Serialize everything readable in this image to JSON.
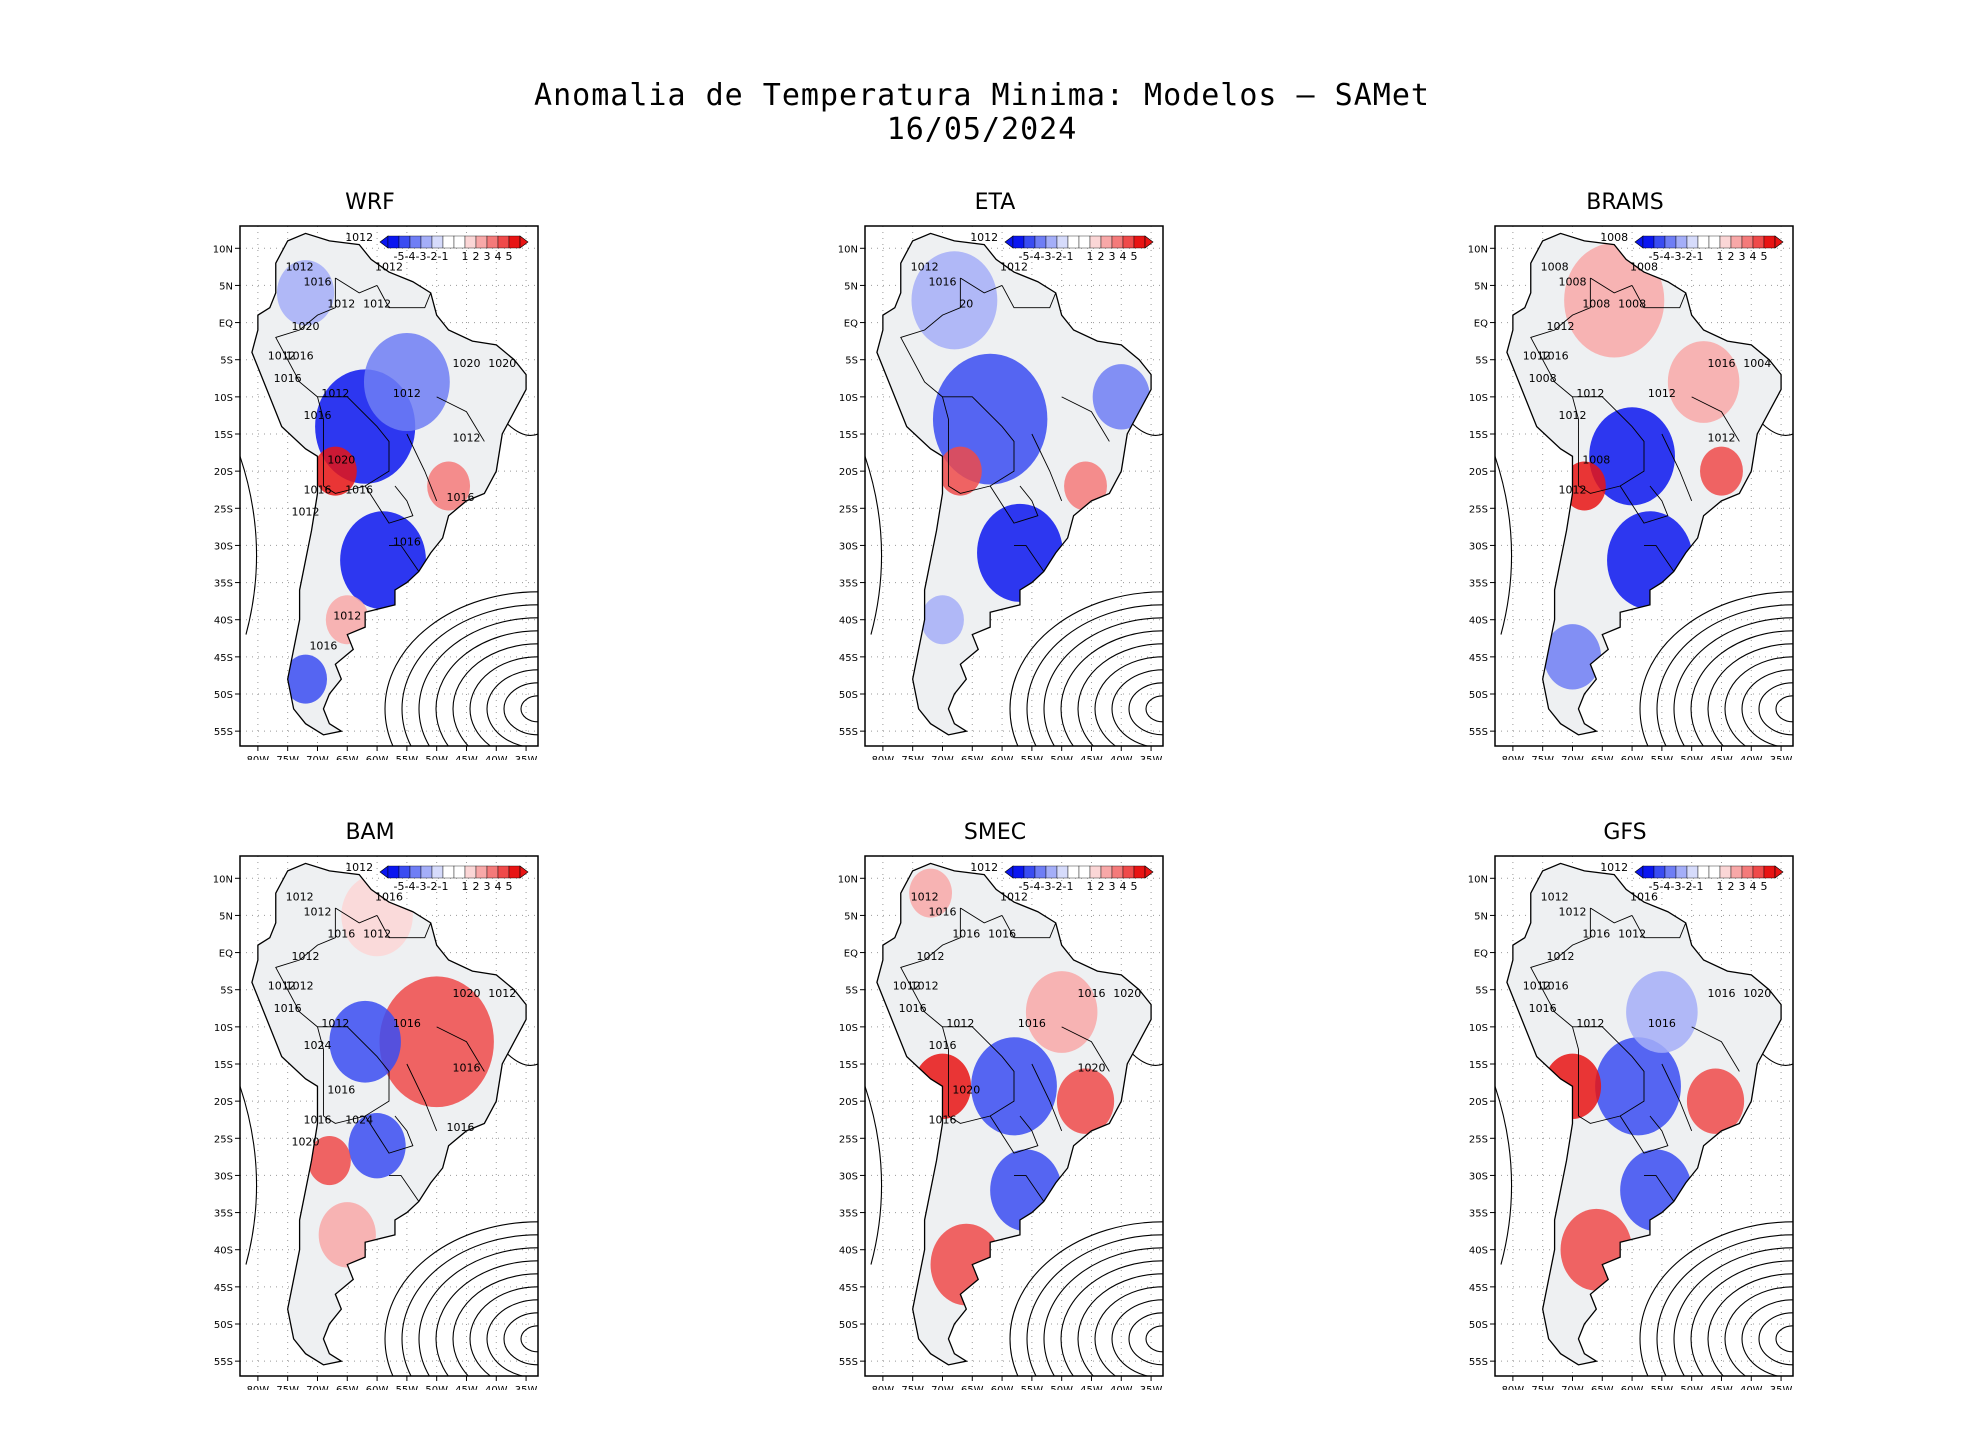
{
  "header": {
    "title_line1": "Anomalia de Temperatura Minima: Modelos — SAMet",
    "title_line2": "16/05/2024"
  },
  "colors": {
    "neg5": "#0a16f0",
    "neg4": "#3a4cf2",
    "neg3": "#6f7ef5",
    "neg2": "#a4aef8",
    "neg1": "#d6dbfb",
    "zero": "#ffffff",
    "pos1": "#fbd6d6",
    "pos2": "#f8a8a8",
    "pos3": "#f47a7a",
    "pos4": "#ef4a4a",
    "pos5": "#e81414",
    "contour": "#000000",
    "land": "#eef0f2"
  },
  "chart_data": [
    {
      "type": "heatmap",
      "title": "WRF",
      "colorbar_labels": [
        "-5",
        "-4",
        "-3",
        "-2",
        "-1",
        "1",
        "2",
        "3",
        "4",
        "5"
      ],
      "x_ticks": [
        "80W",
        "75W",
        "70W",
        "65W",
        "60W",
        "55W",
        "50W",
        "45W",
        "40W",
        "35W"
      ],
      "y_ticks": [
        "10N",
        "5N",
        "EQ",
        "5S",
        "10S",
        "15S",
        "20S",
        "25S",
        "30S",
        "35S",
        "40S",
        "45S",
        "50S",
        "55S"
      ],
      "xlim": [
        -83,
        -33
      ],
      "ylim": [
        -57,
        13
      ],
      "anomalies": [
        {
          "lon": -62,
          "lat": -14,
          "r": 7,
          "value": -5
        },
        {
          "lon": -59,
          "lat": -32,
          "r": 6,
          "value": -5
        },
        {
          "lon": -55,
          "lat": -8,
          "r": 6,
          "value": -3
        },
        {
          "lon": -67,
          "lat": -20,
          "r": 3,
          "value": 5
        },
        {
          "lon": -48,
          "lat": -22,
          "r": 3,
          "value": 3
        },
        {
          "lon": -65,
          "lat": -40,
          "r": 3,
          "value": 2
        },
        {
          "lon": -72,
          "lat": -48,
          "r": 3,
          "value": -4
        },
        {
          "lon": -72,
          "lat": 4,
          "r": 4,
          "value": -2
        }
      ],
      "isobar_labels": [
        "1012",
        "1012",
        "1016",
        "1012",
        "1012",
        "1012",
        "1020",
        "1016",
        "1012",
        "1016",
        "1012",
        "1020",
        "1020",
        "1012",
        "1016",
        "1012",
        "1020",
        "1016",
        "1016",
        "1012",
        "1016",
        "1016",
        "1012",
        "1016"
      ]
    },
    {
      "type": "heatmap",
      "title": "ETA",
      "colorbar_labels": [
        "-5",
        "-4",
        "-3",
        "-2",
        "-1",
        "1",
        "2",
        "3",
        "4",
        "5"
      ],
      "x_ticks": [
        "80W",
        "75W",
        "70W",
        "65W",
        "60W",
        "55W",
        "50W",
        "45W",
        "40W",
        "35W"
      ],
      "y_ticks": [
        "10N",
        "5N",
        "EQ",
        "5S",
        "10S",
        "15S",
        "20S",
        "25S",
        "30S",
        "35S",
        "40S",
        "45S",
        "50S",
        "55S"
      ],
      "xlim": [
        -83,
        -33
      ],
      "ylim": [
        -57,
        13
      ],
      "anomalies": [
        {
          "lon": -62,
          "lat": -13,
          "r": 8,
          "value": -4
        },
        {
          "lon": -57,
          "lat": -31,
          "r": 6,
          "value": -5
        },
        {
          "lon": -68,
          "lat": 3,
          "r": 6,
          "value": -2
        },
        {
          "lon": -40,
          "lat": -10,
          "r": 4,
          "value": -3
        },
        {
          "lon": -67,
          "lat": -20,
          "r": 3,
          "value": 4
        },
        {
          "lon": -46,
          "lat": -22,
          "r": 3,
          "value": 3
        },
        {
          "lon": -70,
          "lat": -40,
          "r": 3,
          "value": -2
        }
      ],
      "isobar_labels": [
        "1012",
        "1012",
        "1016",
        "1012",
        "20"
      ]
    },
    {
      "type": "heatmap",
      "title": "BRAMS",
      "colorbar_labels": [
        "-5",
        "-4",
        "-3",
        "-2",
        "-1",
        "1",
        "2",
        "3",
        "4",
        "5"
      ],
      "x_ticks": [
        "80W",
        "75W",
        "70W",
        "65W",
        "60W",
        "55W",
        "50W",
        "45W",
        "40W",
        "35W"
      ],
      "y_ticks": [
        "10N",
        "5N",
        "EQ",
        "5S",
        "10S",
        "15S",
        "20S",
        "25S",
        "30S",
        "35S",
        "40S",
        "45S",
        "50S",
        "55S"
      ],
      "xlim": [
        -83,
        -33
      ],
      "ylim": [
        -57,
        13
      ],
      "anomalies": [
        {
          "lon": -60,
          "lat": -18,
          "r": 6,
          "value": -5
        },
        {
          "lon": -57,
          "lat": -32,
          "r": 6,
          "value": -5
        },
        {
          "lon": -63,
          "lat": 3,
          "r": 7,
          "value": 2
        },
        {
          "lon": -48,
          "lat": -8,
          "r": 5,
          "value": 2
        },
        {
          "lon": -68,
          "lat": -22,
          "r": 3,
          "value": 5
        },
        {
          "lon": -45,
          "lat": -20,
          "r": 3,
          "value": 4
        },
        {
          "lon": -70,
          "lat": -45,
          "r": 4,
          "value": -3
        }
      ],
      "isobar_labels": [
        "1008",
        "1008",
        "1008",
        "1008",
        "1008",
        "1008",
        "1012",
        "1016",
        "1012",
        "1008",
        "1012",
        "1016",
        "1004",
        "1012",
        "1012",
        "1012",
        "1008",
        "1012"
      ]
    },
    {
      "type": "heatmap",
      "title": "BAM",
      "colorbar_labels": [
        "-5",
        "-4",
        "-3",
        "-2",
        "-1",
        "1",
        "2",
        "3",
        "4",
        "5"
      ],
      "x_ticks": [
        "80W",
        "75W",
        "70W",
        "65W",
        "60W",
        "55W",
        "50W",
        "45W",
        "40W",
        "35W"
      ],
      "y_ticks": [
        "10N",
        "5N",
        "EQ",
        "5S",
        "10S",
        "15S",
        "20S",
        "25S",
        "30S",
        "35S",
        "40S",
        "45S",
        "50S",
        "55S"
      ],
      "xlim": [
        -83,
        -33
      ],
      "ylim": [
        -57,
        13
      ],
      "anomalies": [
        {
          "lon": -50,
          "lat": -12,
          "r": 8,
          "value": 4
        },
        {
          "lon": -62,
          "lat": -12,
          "r": 5,
          "value": -4
        },
        {
          "lon": -60,
          "lat": -26,
          "r": 4,
          "value": -4
        },
        {
          "lon": -68,
          "lat": -28,
          "r": 3,
          "value": 4
        },
        {
          "lon": -65,
          "lat": -38,
          "r": 4,
          "value": 2
        },
        {
          "lon": -60,
          "lat": 5,
          "r": 5,
          "value": 1
        }
      ],
      "isobar_labels": [
        "1012",
        "1012",
        "1012",
        "1016",
        "1016",
        "1012",
        "1012",
        "1012",
        "1012",
        "1016",
        "1012",
        "1020",
        "1012",
        "1016",
        "1024",
        "1016",
        "1016",
        "1016",
        "1024",
        "1020",
        "1016"
      ]
    },
    {
      "type": "heatmap",
      "title": "SMEC",
      "colorbar_labels": [
        "-5",
        "-4",
        "-3",
        "-2",
        "-1",
        "1",
        "2",
        "3",
        "4",
        "5"
      ],
      "x_ticks": [
        "80W",
        "75W",
        "70W",
        "65W",
        "60W",
        "55W",
        "50W",
        "45W",
        "40W",
        "35W"
      ],
      "y_ticks": [
        "10N",
        "5N",
        "EQ",
        "5S",
        "10S",
        "15S",
        "20S",
        "25S",
        "30S",
        "35S",
        "40S",
        "45S",
        "50S",
        "55S"
      ],
      "xlim": [
        -83,
        -33
      ],
      "ylim": [
        -57,
        13
      ],
      "anomalies": [
        {
          "lon": -58,
          "lat": -18,
          "r": 6,
          "value": -4
        },
        {
          "lon": -56,
          "lat": -32,
          "r": 5,
          "value": -4
        },
        {
          "lon": -70,
          "lat": -18,
          "r": 4,
          "value": 5
        },
        {
          "lon": -46,
          "lat": -20,
          "r": 4,
          "value": 4
        },
        {
          "lon": -50,
          "lat": -8,
          "r": 5,
          "value": 2
        },
        {
          "lon": -66,
          "lat": -42,
          "r": 5,
          "value": 4
        },
        {
          "lon": -72,
          "lat": 8,
          "r": 3,
          "value": 2
        }
      ],
      "isobar_labels": [
        "1012",
        "1012",
        "1016",
        "1012",
        "1016",
        "1016",
        "1012",
        "1012",
        "1012",
        "1016",
        "1012",
        "1016",
        "1020",
        "1016",
        "1016",
        "1020",
        "1020",
        "1016"
      ]
    },
    {
      "type": "heatmap",
      "title": "GFS",
      "colorbar_labels": [
        "-5",
        "-4",
        "-3",
        "-2",
        "-1",
        "1",
        "2",
        "3",
        "4",
        "5"
      ],
      "x_ticks": [
        "80W",
        "75W",
        "70W",
        "65W",
        "60W",
        "55W",
        "50W",
        "45W",
        "40W",
        "35W"
      ],
      "y_ticks": [
        "10N",
        "5N",
        "EQ",
        "5S",
        "10S",
        "15S",
        "20S",
        "25S",
        "30S",
        "35S",
        "40S",
        "45S",
        "50S",
        "55S"
      ],
      "xlim": [
        -83,
        -33
      ],
      "ylim": [
        -57,
        13
      ],
      "anomalies": [
        {
          "lon": -59,
          "lat": -18,
          "r": 6,
          "value": -4
        },
        {
          "lon": -56,
          "lat": -32,
          "r": 5,
          "value": -4
        },
        {
          "lon": -70,
          "lat": -18,
          "r": 4,
          "value": 5
        },
        {
          "lon": -46,
          "lat": -20,
          "r": 4,
          "value": 4
        },
        {
          "lon": -66,
          "lat": -40,
          "r": 5,
          "value": 4
        },
        {
          "lon": -55,
          "lat": -8,
          "r": 5,
          "value": -2
        }
      ],
      "isobar_labels": [
        "1012",
        "1012",
        "1012",
        "1016",
        "1016",
        "1012",
        "1012",
        "1016",
        "1012",
        "1016",
        "1012",
        "1016",
        "1020",
        "1016"
      ]
    }
  ]
}
